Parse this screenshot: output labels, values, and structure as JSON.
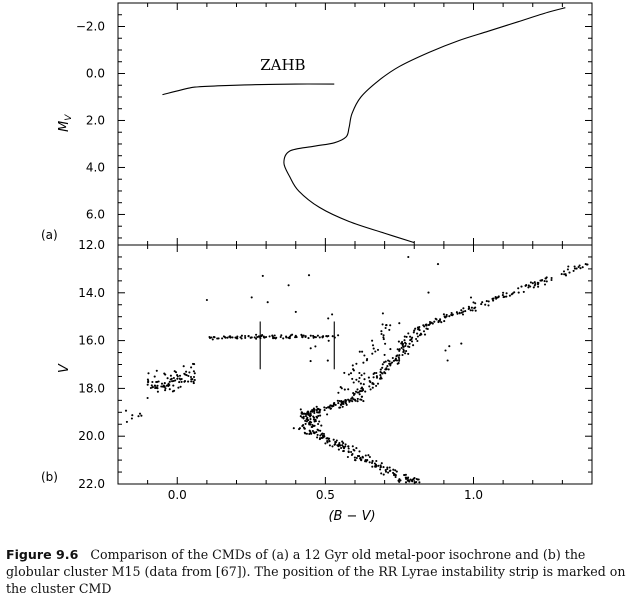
{
  "chart_data": [
    {
      "panel_label": "(a)",
      "type": "line",
      "xlabel": "",
      "ylabel": "M_V",
      "ylabel_main": "M",
      "ylabel_sub": "V",
      "xlim": [
        -0.2,
        1.4
      ],
      "ylim": [
        7.3,
        -3.0
      ],
      "y_inverted": true,
      "yticks": [
        -2.0,
        0.0,
        2.0,
        4.0,
        6.0
      ],
      "ytick_labels": [
        "−2.0",
        "0.0",
        "2.0",
        "4.0",
        "6.0"
      ],
      "xticks": [
        0.0,
        0.5,
        1.0
      ],
      "series": [
        {
          "x": [
            -0.05,
            0.04,
            0.07,
            0.15,
            0.25,
            0.4,
            0.53
          ],
          "y": [
            0.9,
            0.62,
            0.57,
            0.52,
            0.48,
            0.45,
            0.45
          ]
        },
        {
          "x": [
            0.8,
            0.7,
            0.58,
            0.48,
            0.41,
            0.38,
            0.36,
            0.38,
            0.46,
            0.53,
            0.57,
            0.58,
            0.59,
            0.62,
            0.68,
            0.75,
            0.85,
            0.95,
            1.05,
            1.15,
            1.25,
            1.31
          ],
          "y": [
            7.2,
            6.8,
            6.3,
            5.7,
            5.0,
            4.4,
            3.8,
            3.3,
            3.1,
            2.95,
            2.7,
            2.3,
            1.7,
            1.0,
            0.3,
            -0.3,
            -0.9,
            -1.4,
            -1.8,
            -2.2,
            -2.6,
            -2.8
          ]
        }
      ],
      "annotations": [
        {
          "text": "ZAHB",
          "x": 0.28,
          "y": -0.15
        }
      ]
    },
    {
      "panel_label": "(b)",
      "type": "scatter",
      "xlabel": "(B − V)",
      "ylabel": "V",
      "xlim": [
        -0.2,
        1.4
      ],
      "ylim": [
        22.0,
        12.0
      ],
      "y_inverted": true,
      "yticks": [
        12.0,
        14.0,
        16.0,
        18.0,
        20.0,
        22.0
      ],
      "ytick_labels": [
        "12.0",
        "14.0",
        "16.0",
        "18.0",
        "20.0",
        "22.0"
      ],
      "xticks": [
        0.0,
        0.5,
        1.0
      ],
      "xtick_labels": [
        "0.0",
        "0.5",
        "1.0"
      ],
      "instability_strip": {
        "blue_edge": 0.28,
        "red_edge": 0.53,
        "v_range": [
          15.2,
          17.2
        ]
      },
      "sample_points": [
        [
          0.12,
          15.95
        ],
        [
          0.2,
          15.9
        ],
        [
          0.3,
          15.85
        ],
        [
          0.4,
          15.8
        ],
        [
          0.0,
          17.6
        ],
        [
          -0.03,
          17.9
        ],
        [
          0.03,
          17.3
        ],
        [
          -0.1,
          18.4
        ],
        [
          -0.17,
          19.4
        ],
        [
          0.42,
          19.0
        ],
        [
          0.5,
          20.3
        ],
        [
          0.6,
          21.0
        ],
        [
          0.75,
          21.8
        ],
        [
          0.55,
          18.8
        ],
        [
          0.62,
          17.8
        ],
        [
          0.7,
          16.6
        ],
        [
          0.78,
          15.7
        ],
        [
          0.9,
          14.9
        ],
        [
          1.0,
          14.4
        ],
        [
          1.1,
          14.0
        ],
        [
          1.2,
          13.6
        ],
        [
          1.32,
          12.9
        ],
        [
          0.78,
          12.5
        ],
        [
          0.88,
          12.8
        ],
        [
          0.1,
          14.3
        ],
        [
          0.4,
          14.8
        ]
      ]
    }
  ],
  "caption": {
    "label": "Figure 9.6",
    "text": "Comparison of the CMDs of (a) a 12 Gyr old metal-poor isochrone and (b) the globular cluster M15 (data from [67]). The position of the RR Lyrae instability strip is marked on the cluster CMD"
  }
}
